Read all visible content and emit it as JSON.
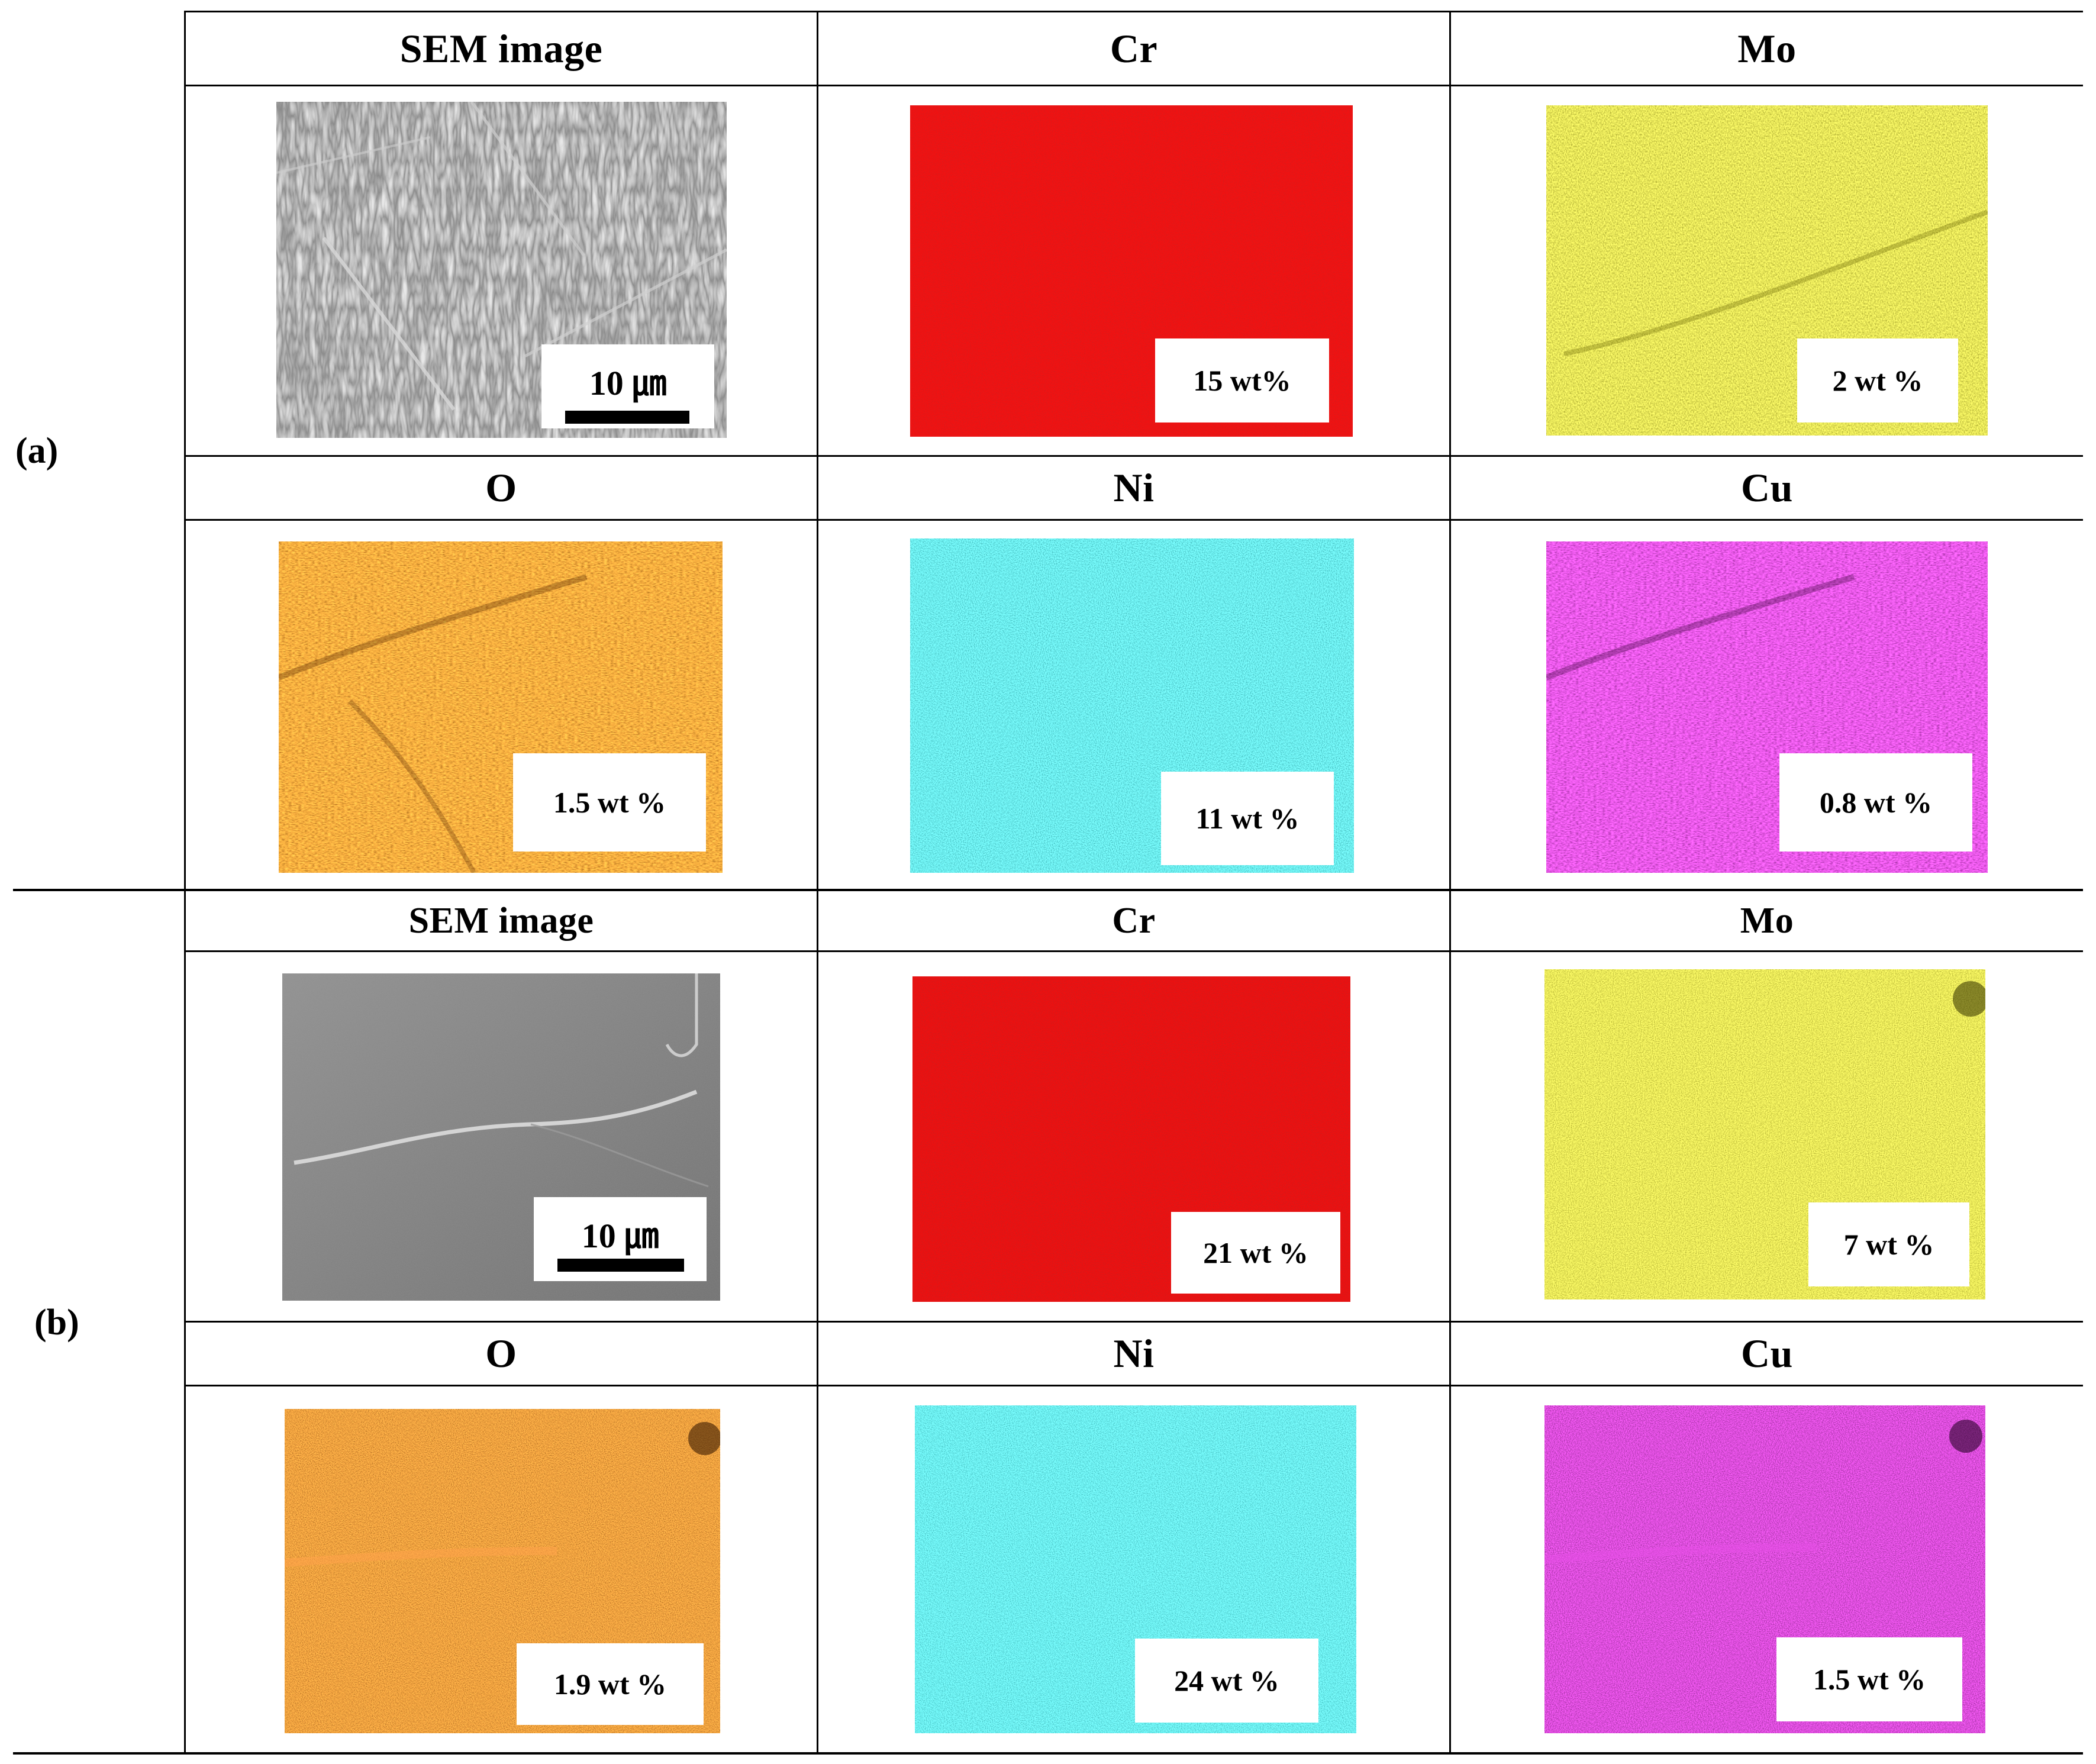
{
  "rows": [
    {
      "label": "(a)",
      "headers_top": [
        "SEM image",
        "Cr",
        "Mo"
      ],
      "headers_bottom": [
        "O",
        "Ni",
        "Cu"
      ],
      "scale_bar": "10 ㎛",
      "values": {
        "cr": "15 wt%",
        "mo": "2 wt %",
        "o": "1.5 wt %",
        "ni": "11 wt %",
        "cu": "0.8 wt %"
      }
    },
    {
      "label": "(b)",
      "headers_top": [
        "SEM image",
        "Cr",
        "Mo"
      ],
      "headers_bottom": [
        "O",
        "Ni",
        "Cu"
      ],
      "scale_bar": "10 ㎛",
      "values": {
        "cr": "21 wt %",
        "mo": "7 wt %",
        "o": "1.9 wt %",
        "ni": "24 wt %",
        "cu": "1.5 wt %"
      }
    }
  ],
  "map_colors": {
    "cr": "#ee1111",
    "mo": "#c9c414",
    "o": "#ef7a12",
    "ni": "#1ad2d4",
    "cu": "#c51ec4",
    "sem_a": "#8f8f8f",
    "sem_b": "#7a7a7a"
  }
}
